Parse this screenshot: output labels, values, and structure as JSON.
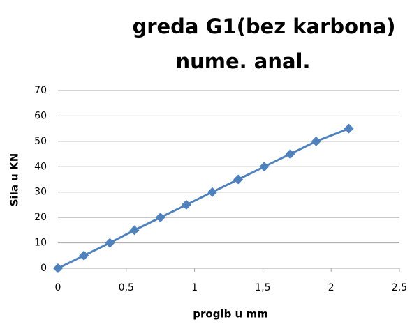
{
  "chart_data": {
    "type": "line",
    "title": [
      "greda G1(bez karbona)",
      "nume. anal."
    ],
    "x_label": "progib u mm",
    "y_label": "Sila u KN",
    "x": [
      0,
      0.19,
      0.38,
      0.56,
      0.75,
      0.94,
      1.13,
      1.32,
      1.51,
      1.7,
      1.89,
      2.13
    ],
    "series": [
      {
        "name": "greda G1",
        "color": "#4f81bd",
        "values": [
          0,
          5,
          10,
          15,
          20,
          25,
          30,
          35,
          40,
          45,
          50,
          55
        ]
      }
    ],
    "xlim": [
      0,
      2.5
    ],
    "xticks": [
      0,
      {
        "value": 0.5,
        "label": "0,5"
      },
      1,
      {
        "value": 1.5,
        "label": "1,5"
      },
      2,
      {
        "value": 2.5,
        "label": "2,5"
      }
    ],
    "ylim": [
      0,
      70
    ],
    "yticks": [
      0,
      10,
      20,
      30,
      40,
      50,
      60,
      70
    ],
    "grid": true,
    "marker": "diamond"
  }
}
